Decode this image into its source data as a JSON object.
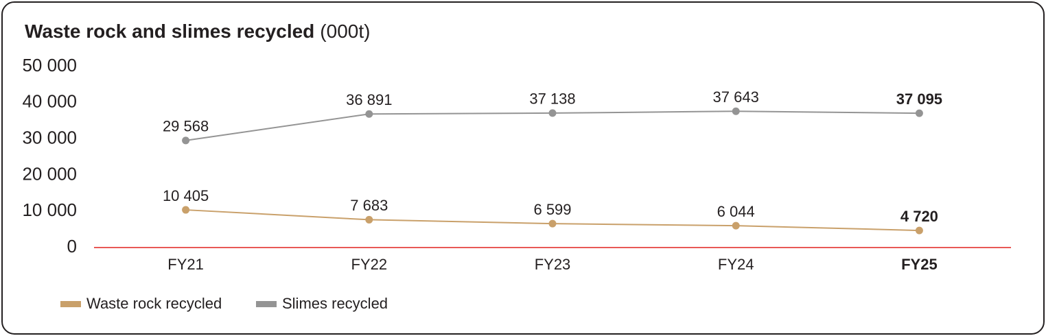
{
  "chart_data": {
    "type": "line",
    "title": "Waste rock and slimes recycled",
    "subtitle": "(000t)",
    "categories": [
      "FY21",
      "FY22",
      "FY23",
      "FY24",
      "FY25"
    ],
    "series": [
      {
        "name": "Waste rock recycled",
        "color": "#c9a06a",
        "values": [
          10405,
          7683,
          6599,
          6044,
          4720
        ],
        "value_labels": [
          "10 405",
          "7 683",
          "6 599",
          "6 044",
          "4 720"
        ]
      },
      {
        "name": "Slimes recycled",
        "color": "#949494",
        "values": [
          29568,
          36891,
          37138,
          37643,
          37095
        ],
        "value_labels": [
          "29 568",
          "36 891",
          "37 138",
          "37 643",
          "37 095"
        ]
      }
    ],
    "ylim": [
      0,
      50000
    ],
    "yticks": [
      0,
      {
        "value": 10000,
        "label": "10 000"
      },
      {
        "value": 20000,
        "label": "20 000"
      },
      {
        "value": 30000,
        "label": "30 000"
      },
      {
        "value": 40000,
        "label": "40 000"
      },
      {
        "value": 50000,
        "label": "50 000"
      }
    ],
    "baseline_color": "#e0201f"
  }
}
